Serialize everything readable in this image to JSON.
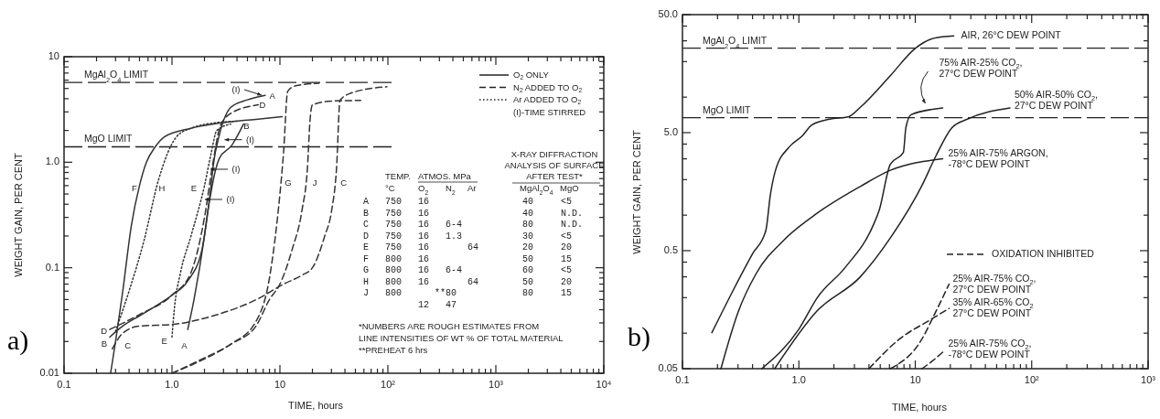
{
  "chart_data": [
    {
      "type": "line",
      "title": "a)",
      "xlabel": "TIME, hours",
      "ylabel": "WEIGHT GAIN, PER CENT",
      "log": "xy",
      "xlim": [
        0.1,
        10000
      ],
      "ylim": [
        0.01,
        10
      ],
      "xticks": [
        {
          "value": 0.1,
          "label": "0.1"
        },
        {
          "value": 0.2,
          "label": null
        },
        {
          "value": 0.3,
          "label": null
        },
        {
          "value": 0.4,
          "label": null
        },
        {
          "value": 0.5,
          "label": null
        },
        {
          "value": 0.6,
          "label": null
        },
        {
          "value": 0.7,
          "label": null
        },
        {
          "value": 0.8,
          "label": null
        },
        {
          "value": 0.9,
          "label": null
        },
        {
          "value": 1,
          "label": "1.0"
        },
        {
          "value": 2,
          "label": null
        },
        {
          "value": 3,
          "label": null
        },
        {
          "value": 4,
          "label": null
        },
        {
          "value": 5,
          "label": null
        },
        {
          "value": 6,
          "label": null
        },
        {
          "value": 7,
          "label": null
        },
        {
          "value": 8,
          "label": null
        },
        {
          "value": 9,
          "label": null
        },
        10,
        {
          "value": 20,
          "label": null
        },
        {
          "value": 30,
          "label": null
        },
        {
          "value": 40,
          "label": null
        },
        {
          "value": 50,
          "label": null
        },
        {
          "value": 60,
          "label": null
        },
        {
          "value": 70,
          "label": null
        },
        {
          "value": 80,
          "label": null
        },
        {
          "value": 90,
          "label": null
        },
        {
          "value": 100,
          "label": "10²"
        },
        {
          "value": 200,
          "label": null
        },
        {
          "value": 300,
          "label": null
        },
        {
          "value": 400,
          "label": null
        },
        {
          "value": 500,
          "label": null
        },
        {
          "value": 600,
          "label": null
        },
        {
          "value": 700,
          "label": null
        },
        {
          "value": 800,
          "label": null
        },
        {
          "value": 900,
          "label": null
        },
        {
          "value": 1000,
          "label": "10³"
        },
        {
          "value": 2000,
          "label": null
        },
        {
          "value": 3000,
          "label": null
        },
        {
          "value": 4000,
          "label": null
        },
        {
          "value": 5000,
          "label": null
        },
        {
          "value": 6000,
          "label": null
        },
        {
          "value": 7000,
          "label": null
        },
        {
          "value": 8000,
          "label": null
        },
        {
          "value": 9000,
          "label": null
        },
        {
          "value": 10000,
          "label": "10⁴"
        }
      ],
      "yticks": [
        0.01,
        {
          "value": 0.02,
          "label": null
        },
        {
          "value": 0.03,
          "label": null
        },
        {
          "value": 0.04,
          "label": null
        },
        {
          "value": 0.05,
          "label": null
        },
        {
          "value": 0.06,
          "label": null
        },
        {
          "value": 0.07,
          "label": null
        },
        {
          "value": 0.08,
          "label": null
        },
        {
          "value": 0.09,
          "label": null
        },
        0.1,
        {
          "value": 0.2,
          "label": null
        },
        {
          "value": 0.3,
          "label": null
        },
        {
          "value": 0.4,
          "label": null
        },
        {
          "value": 0.5,
          "label": null
        },
        {
          "value": 0.6,
          "label": null
        },
        {
          "value": 0.7,
          "label": null
        },
        {
          "value": 0.8,
          "label": null
        },
        {
          "value": 0.9,
          "label": null
        },
        {
          "value": 1,
          "label": "1.0"
        },
        {
          "value": 2,
          "label": null
        },
        {
          "value": 3,
          "label": null
        },
        {
          "value": 4,
          "label": null
        },
        {
          "value": 5,
          "label": null
        },
        {
          "value": 6,
          "label": null
        },
        {
          "value": 7,
          "label": null
        },
        {
          "value": 8,
          "label": null
        },
        {
          "value": 9,
          "label": null
        },
        10
      ],
      "ref_lines": [
        {
          "axis": "y",
          "value": 5.7,
          "label": "MgAl$_{2}$O$_{4}$ LIMIT",
          "line_style": "dashed"
        },
        {
          "axis": "y",
          "value": 1.4,
          "label": "MgO LIMIT",
          "line_style": "dashed"
        }
      ],
      "series": [
        {
          "color": "#333333",
          "line_style": "solid",
          "x": [
            1.4,
            1.6,
            2.0,
            2.3,
            2.4,
            2.76,
            3.55,
            5,
            7.3
          ],
          "values": [
            0.026,
            0.05,
            0.2,
            0.6,
            0.9,
            1.85,
            3.35,
            3.9,
            4.3
          ]
        },
        {
          "color": "#333333",
          "line_style": "solid",
          "x": [
            0.265,
            0.35,
            0.5,
            0.75,
            1.0,
            1.4,
            1.9,
            2.2,
            2.5,
            2.76,
            3.55,
            4.6
          ],
          "values": [
            0.022,
            0.028,
            0.035,
            0.045,
            0.055,
            0.075,
            0.15,
            0.4,
            0.8,
            1.1,
            1.43,
            2.3
          ]
        },
        {
          "color": "#333333",
          "line_style": "dashed",
          "x": [
            0.28,
            0.35,
            0.5,
            1.0,
            2.4,
            6.3,
            10.8,
            16,
            20,
            26,
            30,
            33.5,
            36,
            45,
            98
          ],
          "values": [
            0.017,
            0.024,
            0.028,
            0.029,
            0.035,
            0.051,
            0.07,
            0.085,
            0.1,
            0.2,
            0.34,
            0.9,
            3.85,
            4.5,
            5.2
          ]
        },
        {
          "color": "#333333",
          "line_style": "dashed",
          "x": [
            0.265,
            0.5,
            1.0,
            1.5,
            2.0,
            2.4,
            2.8,
            3.5,
            6.3
          ],
          "values": [
            0.026,
            0.036,
            0.055,
            0.09,
            0.3,
            1.0,
            2.2,
            2.9,
            3.5
          ]
        },
        {
          "color": "#333333",
          "line_style": "dotted",
          "x": [
            1.0,
            1.05,
            1.2,
            1.5,
            2.0,
            2.3,
            2.6,
            3.5
          ],
          "values": [
            0.022,
            0.04,
            0.09,
            0.2,
            0.6,
            1.2,
            2.0,
            2.3
          ]
        },
        {
          "color": "#333333",
          "line_style": "solid",
          "x": [
            0.27,
            0.3,
            0.35,
            0.42,
            0.5,
            0.58,
            0.7,
            0.85,
            1.5,
            2.76,
            6,
            10.5
          ],
          "values": [
            0.01,
            0.02,
            0.06,
            0.25,
            0.6,
            1.0,
            1.4,
            1.74,
            2.1,
            2.35,
            2.55,
            2.7
          ]
        },
        {
          "color": "#333333",
          "line_style": "dashed",
          "x": [
            1.0,
            2.0,
            3.55,
            6.0,
            8.0,
            8.9,
            10,
            10.8,
            11.8,
            14,
            23
          ],
          "values": [
            0.01,
            0.014,
            0.019,
            0.031,
            0.08,
            0.17,
            0.5,
            1.23,
            4.7,
            5.3,
            5.6
          ]
        },
        {
          "color": "#333333",
          "line_style": "dotted",
          "x": [
            0.3,
            0.4,
            0.55,
            0.75,
            1.1,
            1.5,
            2.1,
            4.0
          ],
          "values": [
            0.025,
            0.06,
            0.18,
            0.68,
            1.74,
            2.1,
            2.3,
            2.45
          ]
        },
        {
          "color": "#333333",
          "line_style": "dashed",
          "x": [
            1.0,
            3.55,
            6,
            8,
            10,
            13,
            16,
            18,
            19,
            20,
            30,
            56
          ],
          "values": [
            0.01,
            0.019,
            0.028,
            0.05,
            0.07,
            0.15,
            0.35,
            0.9,
            2.5,
            3.5,
            3.8,
            3.85
          ]
        }
      ],
      "annotations": [
        "O$_{2}$ ONLY",
        "N$_{2}$ ADDED TO O$_{2}$",
        "Ar ADDED TO O$_{2}$",
        "(I)-TIME STIRRED",
        "(I)",
        "(I)",
        "(I)",
        "(I)",
        "A",
        "D",
        "B",
        "F",
        "H",
        "E",
        "G",
        "J",
        "C",
        "D",
        "B",
        "C",
        "E",
        "A",
        "TEMP.",
        "ATMOS. MPa",
        "X-RAY DIFFRACTION",
        "ANALYSIS OF SURFACE",
        "AFTER TEST*",
        "°C",
        "O$_{2}$",
        "N$_{2}$",
        "Ar",
        "MgAl$_{2}$O$_{4}$",
        "MgO",
        "A   750   16                 40     <5",
        "B   750   16                 40     N.D.",
        "C   750   16   6-4           80     N.D.",
        "D   750   16   1.3           30     <5",
        "E   750   16       64        20     20",
        "F   800   16                 50     15",
        "G   800   16   6-4           60     <5",
        "H   800   16       64        50     20",
        "J   800      **80            80     15",
        "          12   47",
        "*NUMBERS ARE ROUGH ESTIMATES FROM",
        "LINE INTENSITIES OF WT % OF TOTAL MATERIAL",
        "**PREHEAT 6 hrs"
      ]
    },
    {
      "type": "line",
      "title": "b)",
      "xlabel": "TIME, hours",
      "ylabel": "WEIGHT GAIN, PER CENT",
      "log": "xy",
      "xlim": [
        0.1,
        1000
      ],
      "ylim": [
        0.05,
        50
      ],
      "xticks": [
        {
          "value": 0.1,
          "label": "0.1"
        },
        {
          "value": 0.2,
          "label": null
        },
        {
          "value": 0.3,
          "label": null
        },
        {
          "value": 0.4,
          "label": null
        },
        {
          "value": 0.5,
          "label": null
        },
        {
          "value": 0.6,
          "label": null
        },
        {
          "value": 0.7,
          "label": null
        },
        {
          "value": 0.8,
          "label": null
        },
        {
          "value": 0.9,
          "label": null
        },
        {
          "value": 1,
          "label": "1.0"
        },
        {
          "value": 2,
          "label": null
        },
        {
          "value": 3,
          "label": null
        },
        {
          "value": 4,
          "label": null
        },
        {
          "value": 5,
          "label": null
        },
        {
          "value": 6,
          "label": null
        },
        {
          "value": 7,
          "label": null
        },
        {
          "value": 8,
          "label": null
        },
        {
          "value": 9,
          "label": null
        },
        10,
        {
          "value": 20,
          "label": null
        },
        {
          "value": 30,
          "label": null
        },
        {
          "value": 40,
          "label": null
        },
        {
          "value": 50,
          "label": null
        },
        {
          "value": 60,
          "label": null
        },
        {
          "value": 70,
          "label": null
        },
        {
          "value": 80,
          "label": null
        },
        {
          "value": 90,
          "label": null
        },
        {
          "value": 100,
          "label": "10²"
        },
        {
          "value": 200,
          "label": null
        },
        {
          "value": 300,
          "label": null
        },
        {
          "value": 400,
          "label": null
        },
        {
          "value": 500,
          "label": null
        },
        {
          "value": 600,
          "label": null
        },
        {
          "value": 700,
          "label": null
        },
        {
          "value": 800,
          "label": null
        },
        {
          "value": 900,
          "label": null
        },
        {
          "value": 1000,
          "label": "10³"
        }
      ],
      "yticks": [
        0.05,
        {
          "value": 0.1,
          "label": null
        },
        {
          "value": 0.2,
          "label": null
        },
        {
          "value": 0.3,
          "label": null
        },
        {
          "value": 0.4,
          "label": null
        },
        0.5,
        {
          "value": 1,
          "label": null
        },
        {
          "value": 2,
          "label": null
        },
        {
          "value": 3,
          "label": null
        },
        {
          "value": 4,
          "label": null
        },
        {
          "value": 5,
          "label": "5.0"
        },
        {
          "value": 10,
          "label": null
        },
        {
          "value": 20,
          "label": null
        },
        {
          "value": 30,
          "label": null
        },
        {
          "value": 40,
          "label": null
        },
        {
          "value": 50,
          "label": "50.0"
        }
      ],
      "ref_lines": [
        {
          "axis": "y",
          "value": 26,
          "label": "MgAl$_{2}$O$_{4}$ LIMIT",
          "line_style": "dashed"
        },
        {
          "axis": "y",
          "value": 6.7,
          "label": "MgO LIMIT",
          "line_style": "dashed"
        }
      ],
      "series": [
        {
          "name": "AIR, 26°C DEW POINT",
          "color": "#222222",
          "line_style": "solid",
          "x": [
            0.179,
            0.266,
            0.4,
            0.52,
            0.57,
            0.63,
            0.83,
            1.07,
            1.29,
            1.84,
            2.66,
            3.37,
            6.1,
            10,
            14.4,
            21.4
          ],
          "values": [
            0.101,
            0.22,
            0.47,
            0.74,
            1.5,
            2.4,
            3.8,
            4.7,
            5.8,
            6.5,
            6.8,
            8.2,
            15.2,
            25.9,
            31.5,
            33
          ]
        },
        {
          "name": "75% AIR-25% CO$_{2}$,\n27°C DEW POINT",
          "color": "#222222",
          "line_style": "solid",
          "x": [
            0.48,
            1.0,
            1.44,
            2.5,
            4.3,
            4.9,
            6.1,
            7.9,
            8.3,
            9.2,
            17.2
          ],
          "values": [
            0.05,
            0.108,
            0.2,
            0.36,
            0.8,
            1.1,
            2.7,
            3.4,
            5.5,
            7.1,
            8.1
          ]
        },
        {
          "name": "50% AIR-50% CO$_{2}$,\n27°C DEW POINT",
          "color": "#222222",
          "line_style": "solid",
          "x": [
            0.62,
            1.44,
            3.37,
            6.1,
            11.4,
            15.1,
            20.6,
            28,
            65
          ],
          "values": [
            0.05,
            0.155,
            0.3,
            0.64,
            1.78,
            3.2,
            5.5,
            6.5,
            8.1
          ]
        },
        {
          "name": "25% AIR-75% ARGON,\n-78°C DEW POINT",
          "color": "#222222",
          "line_style": "solid",
          "x": [
            0.214,
            0.3,
            0.43,
            0.75,
            1.44,
            3.37,
            6.1,
            17.2
          ],
          "values": [
            0.05,
            0.15,
            0.32,
            0.62,
            1.04,
            1.75,
            2.4,
            3.0
          ]
        },
        {
          "name": "25% AIR-75% CO$_{2}$,\n27°C DEW POINT",
          "color": "#222222",
          "line_style": "dashed",
          "x": [
            6.1,
            11.4,
            14.4,
            19.5
          ],
          "values": [
            0.05,
            0.089,
            0.14,
            0.26
          ]
        },
        {
          "name": "35% AIR-65% CO$_{2}$\n27°C DEW POINT",
          "color": "#222222",
          "line_style": "dashed",
          "x": [
            4.0,
            7.3,
            13.5,
            19.5
          ],
          "values": [
            0.05,
            0.089,
            0.13,
            0.162
          ]
        },
        {
          "name": "25% AIR-75% CO$_{2}$,\n-78°C DEW POINT",
          "color": "#222222",
          "line_style": "dashed",
          "x": [
            11.4,
            14,
            17.2
          ],
          "values": [
            0.05,
            0.058,
            0.069
          ]
        }
      ],
      "annotations": [
        "OXIDATION INHIBITED"
      ]
    }
  ]
}
